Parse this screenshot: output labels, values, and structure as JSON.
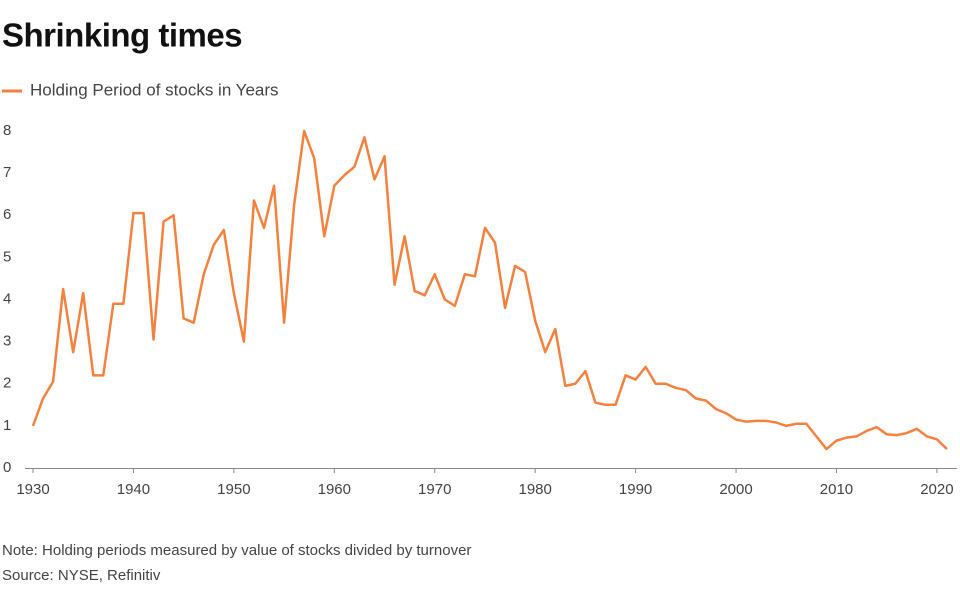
{
  "chart_data": {
    "type": "line",
    "title": "Shrinking times",
    "note": "Note: Holding periods measured by value of stocks divided by turnover",
    "source": "Source: NYSE, Refinitiv",
    "x": [
      1930,
      1931,
      1932,
      1933,
      1934,
      1935,
      1936,
      1937,
      1938,
      1939,
      1940,
      1941,
      1942,
      1943,
      1944,
      1945,
      1946,
      1947,
      1948,
      1949,
      1950,
      1951,
      1952,
      1953,
      1954,
      1955,
      1956,
      1957,
      1958,
      1959,
      1960,
      1961,
      1962,
      1963,
      1964,
      1965,
      1966,
      1967,
      1968,
      1969,
      1970,
      1971,
      1972,
      1973,
      1974,
      1975,
      1976,
      1977,
      1978,
      1979,
      1980,
      1981,
      1982,
      1983,
      1984,
      1985,
      1986,
      1987,
      1988,
      1989,
      1990,
      1991,
      1992,
      1993,
      1994,
      1995,
      1996,
      1997,
      1998,
      1999,
      2000,
      2001,
      2002,
      2003,
      2004,
      2005,
      2006,
      2007,
      2008,
      2009,
      2010,
      2011,
      2012,
      2013,
      2014,
      2015,
      2016,
      2017,
      2018,
      2019,
      2020,
      2021
    ],
    "series": [
      {
        "name": "Holding Period of stocks in Years",
        "color": "#f5813f",
        "values": [
          1.0,
          1.65,
          2.05,
          4.25,
          2.75,
          4.15,
          2.2,
          2.2,
          3.9,
          3.9,
          6.05,
          6.05,
          3.05,
          5.85,
          6.0,
          3.55,
          3.45,
          4.6,
          5.3,
          5.65,
          4.15,
          3.0,
          6.35,
          5.7,
          6.7,
          3.45,
          6.25,
          8.0,
          7.35,
          5.5,
          6.7,
          6.95,
          7.15,
          7.85,
          6.85,
          7.4,
          4.35,
          5.5,
          4.2,
          4.1,
          4.6,
          4.0,
          3.85,
          4.6,
          4.55,
          5.7,
          5.35,
          3.8,
          4.8,
          4.65,
          3.5,
          2.75,
          3.3,
          1.95,
          2.0,
          2.3,
          1.55,
          1.5,
          1.5,
          2.2,
          2.1,
          2.4,
          2.0,
          2.0,
          1.9,
          1.85,
          1.65,
          1.6,
          1.4,
          1.3,
          1.15,
          1.1,
          1.12,
          1.12,
          1.08,
          1.0,
          1.05,
          1.05,
          0.75,
          0.45,
          0.65,
          0.72,
          0.75,
          0.88,
          0.97,
          0.8,
          0.78,
          0.83,
          0.93,
          0.75,
          0.68,
          0.45
        ]
      }
    ],
    "xlim": [
      1930,
      2022
    ],
    "xticks": [
      1930,
      1940,
      1950,
      1960,
      1970,
      1980,
      1990,
      2000,
      2010,
      2020
    ],
    "ylim": [
      0,
      8
    ],
    "yticks": [
      0,
      1,
      2,
      3,
      4,
      5,
      6,
      7,
      8
    ],
    "grid": false
  }
}
